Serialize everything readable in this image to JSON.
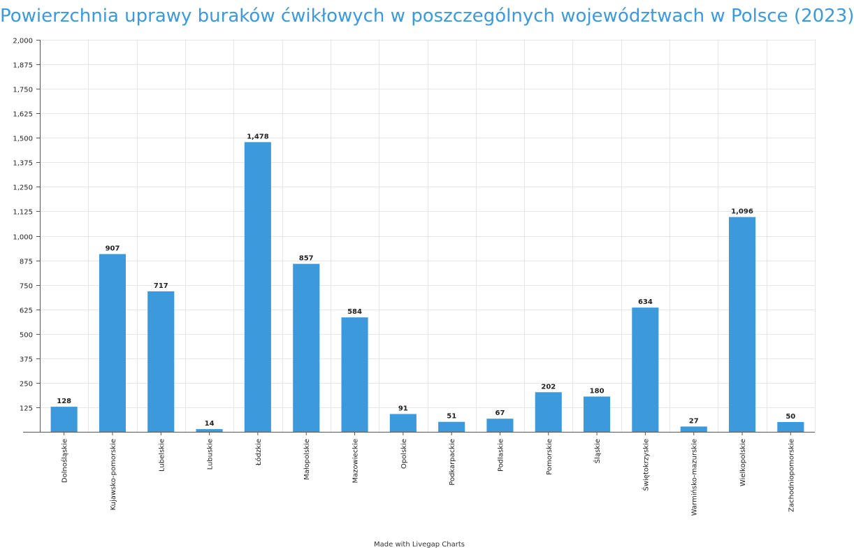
{
  "chart_data": {
    "type": "bar",
    "title": "Powierzchnia uprawy buraków ćwikłowych w poszczególnych województwach w Polsce (2023)",
    "xlabel": "",
    "ylabel": "",
    "categories": [
      "Dolnośląskie",
      "Kujawsko-pomorskie",
      "Lubelskie",
      "Lubuskie",
      "Łódzkie",
      "Małopolskie",
      "Mazowieckie",
      "Opolskie",
      "Podkarpackie",
      "Podlaskie",
      "Pomorskie",
      "Śląskie",
      "Świętokrzyskie",
      "Warmińsko-mazurskie",
      "Wielkopolskie",
      "Zachodniopomorskie"
    ],
    "values": [
      128,
      907,
      717,
      14,
      1478,
      857,
      584,
      91,
      51,
      67,
      202,
      180,
      634,
      27,
      1096,
      50
    ],
    "value_labels": [
      "128",
      "907",
      "717",
      "14",
      "1,478",
      "857",
      "584",
      "91",
      "51",
      "67",
      "202",
      "180",
      "634",
      "27",
      "1,096",
      "50"
    ],
    "ylim": [
      0,
      2000
    ],
    "yticks": [
      0,
      125,
      250,
      375,
      500,
      625,
      750,
      875,
      1000,
      1125,
      1250,
      1375,
      1500,
      1625,
      1750,
      1875,
      2000
    ],
    "ytick_labels": [
      "",
      "125",
      "250",
      "375",
      "500",
      "625",
      "750",
      "875",
      "1,000",
      "1,125",
      "1,250",
      "1,375",
      "1,500",
      "1,625",
      "1,750",
      "1,875",
      "2,000"
    ],
    "grid": true,
    "bar_color": "#3b99dc",
    "title_color": "#3b99dc",
    "legend": "none"
  },
  "footer": {
    "credit": "Made with Livegap Charts"
  }
}
